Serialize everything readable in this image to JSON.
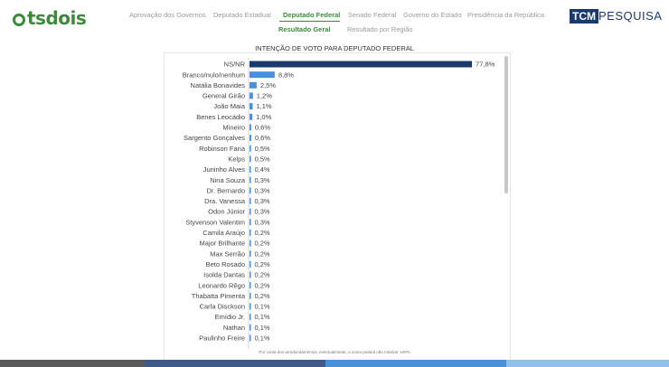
{
  "logo": {
    "text": "tsdois"
  },
  "nav": {
    "items": [
      {
        "label": "Aprovação dos Governos",
        "active": false
      },
      {
        "label": "Deputado Estadual",
        "active": false
      },
      {
        "label": "Deputado Federal",
        "active": true
      },
      {
        "label": "Senado Federal",
        "active": false
      },
      {
        "label": "Governo do Estado",
        "active": false
      },
      {
        "label": "Presidência da República",
        "active": false
      }
    ],
    "sub_items": [
      {
        "label": "Resultado Geral",
        "active": true
      },
      {
        "label": "Resultado por Região",
        "active": false
      }
    ]
  },
  "brand": {
    "tcm": "TCM",
    "pesquisa": "PESQUISA"
  },
  "colors": {
    "accent": "#3d8a3c",
    "bar_top": "#1a3a6e",
    "bar": "#4a90d9"
  },
  "chart_data": {
    "type": "bar",
    "orientation": "horizontal",
    "title": "INTENÇÃO DE VOTO PARA DEPUTADO FEDERAL",
    "categories": [
      "NS/NR",
      "Branco/nulo/nenhum",
      "Natália Bonavides",
      "General Girão",
      "João Maia",
      "Benes Leocádio",
      "Mineiro",
      "Sargento Gonçalves",
      "Robinson Faria",
      "Kelps",
      "Juninho Alves",
      "Nina Souza",
      "Dr. Bernardo",
      "Dra. Vanessa",
      "Odon Júnior",
      "Styvenson Valentim",
      "Camila Araújo",
      "Major Brilhante",
      "Max Serrão",
      "Beto Rosado",
      "Isolda Dantas",
      "Leonardo Rêgo",
      "Thabatta Pimenta",
      "Carla Disckson",
      "Emídio Jr.",
      "Nathan",
      "Paulinho Freire"
    ],
    "values": [
      77.8,
      8.8,
      2.5,
      1.2,
      1.1,
      1.0,
      0.6,
      0.6,
      0.5,
      0.5,
      0.4,
      0.3,
      0.3,
      0.3,
      0.3,
      0.3,
      0.2,
      0.2,
      0.2,
      0.2,
      0.2,
      0.2,
      0.2,
      0.1,
      0.1,
      0.1,
      0.1
    ],
    "labels": [
      "77,8%",
      "8,8%",
      "2,5%",
      "1,2%",
      "1,1%",
      "1,0%",
      "0,6%",
      "0,6%",
      "0,5%",
      "0,5%",
      "0,4%",
      "0,3%",
      "0,3%",
      "0,3%",
      "0,3%",
      "0,3%",
      "0,2%",
      "0,2%",
      "0,2%",
      "0,2%",
      "0,2%",
      "0,2%",
      "0,2%",
      "0,1%",
      "0,1%",
      "0,1%",
      "0,1%"
    ],
    "xlim": [
      0,
      80
    ],
    "grid": false,
    "footnote": "Por conta dos arredondamentos, eventualmente, a soma poderá não totalizar 100%"
  }
}
